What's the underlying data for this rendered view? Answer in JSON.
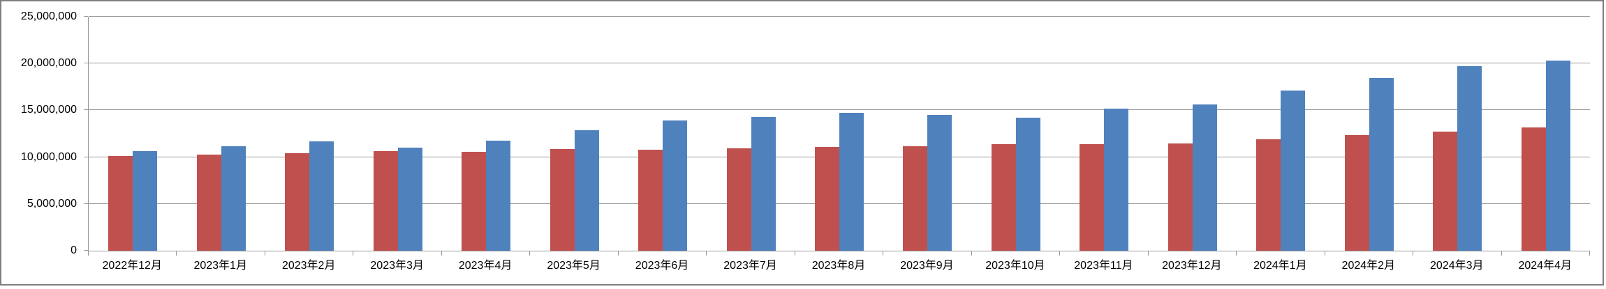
{
  "chart_data": {
    "type": "bar",
    "title": "",
    "categories": [
      "2022年12月",
      "2023年1月",
      "2023年2月",
      "2023年3月",
      "2023年4月",
      "2023年5月",
      "2023年6月",
      "2023年7月",
      "2023年8月",
      "2023年9月",
      "2023年10月",
      "2023年11月",
      "2023年12月",
      "2024年1月",
      "2024年2月",
      "2024年3月",
      "2024年4月"
    ],
    "series": [
      {
        "name": "red-series",
        "color": "#C0504D",
        "values": [
          10100000,
          10300000,
          10450000,
          10650000,
          10550000,
          10900000,
          10800000,
          10950000,
          11100000,
          11150000,
          11350000,
          11400000,
          11450000,
          11900000,
          12350000,
          12750000,
          13200000
        ]
      },
      {
        "name": "blue-series",
        "color": "#4F81BD",
        "values": [
          10650000,
          11150000,
          11700000,
          11050000,
          11750000,
          12850000,
          13950000,
          14300000,
          14750000,
          14500000,
          14200000,
          15200000,
          15650000,
          17100000,
          18450000,
          19700000,
          20350000
        ]
      }
    ],
    "ylim": [
      0,
      25000000
    ],
    "y_ticks": [
      {
        "value": 0,
        "label": "0"
      },
      {
        "value": 5000000,
        "label": "5,000,000"
      },
      {
        "value": 10000000,
        "label": "10,000,000"
      },
      {
        "value": 15000000,
        "label": "15,000,000"
      },
      {
        "value": 20000000,
        "label": "20,000,000"
      },
      {
        "value": 25000000,
        "label": "25,000,000"
      }
    ],
    "xlabel": "",
    "ylabel": "",
    "grid": "horizontal",
    "legend": "none",
    "colors": {
      "gridline": "#969696",
      "axis": "#969696",
      "border": "#7F7F7F",
      "text": "#000000",
      "background": "#FFFFFF"
    }
  }
}
